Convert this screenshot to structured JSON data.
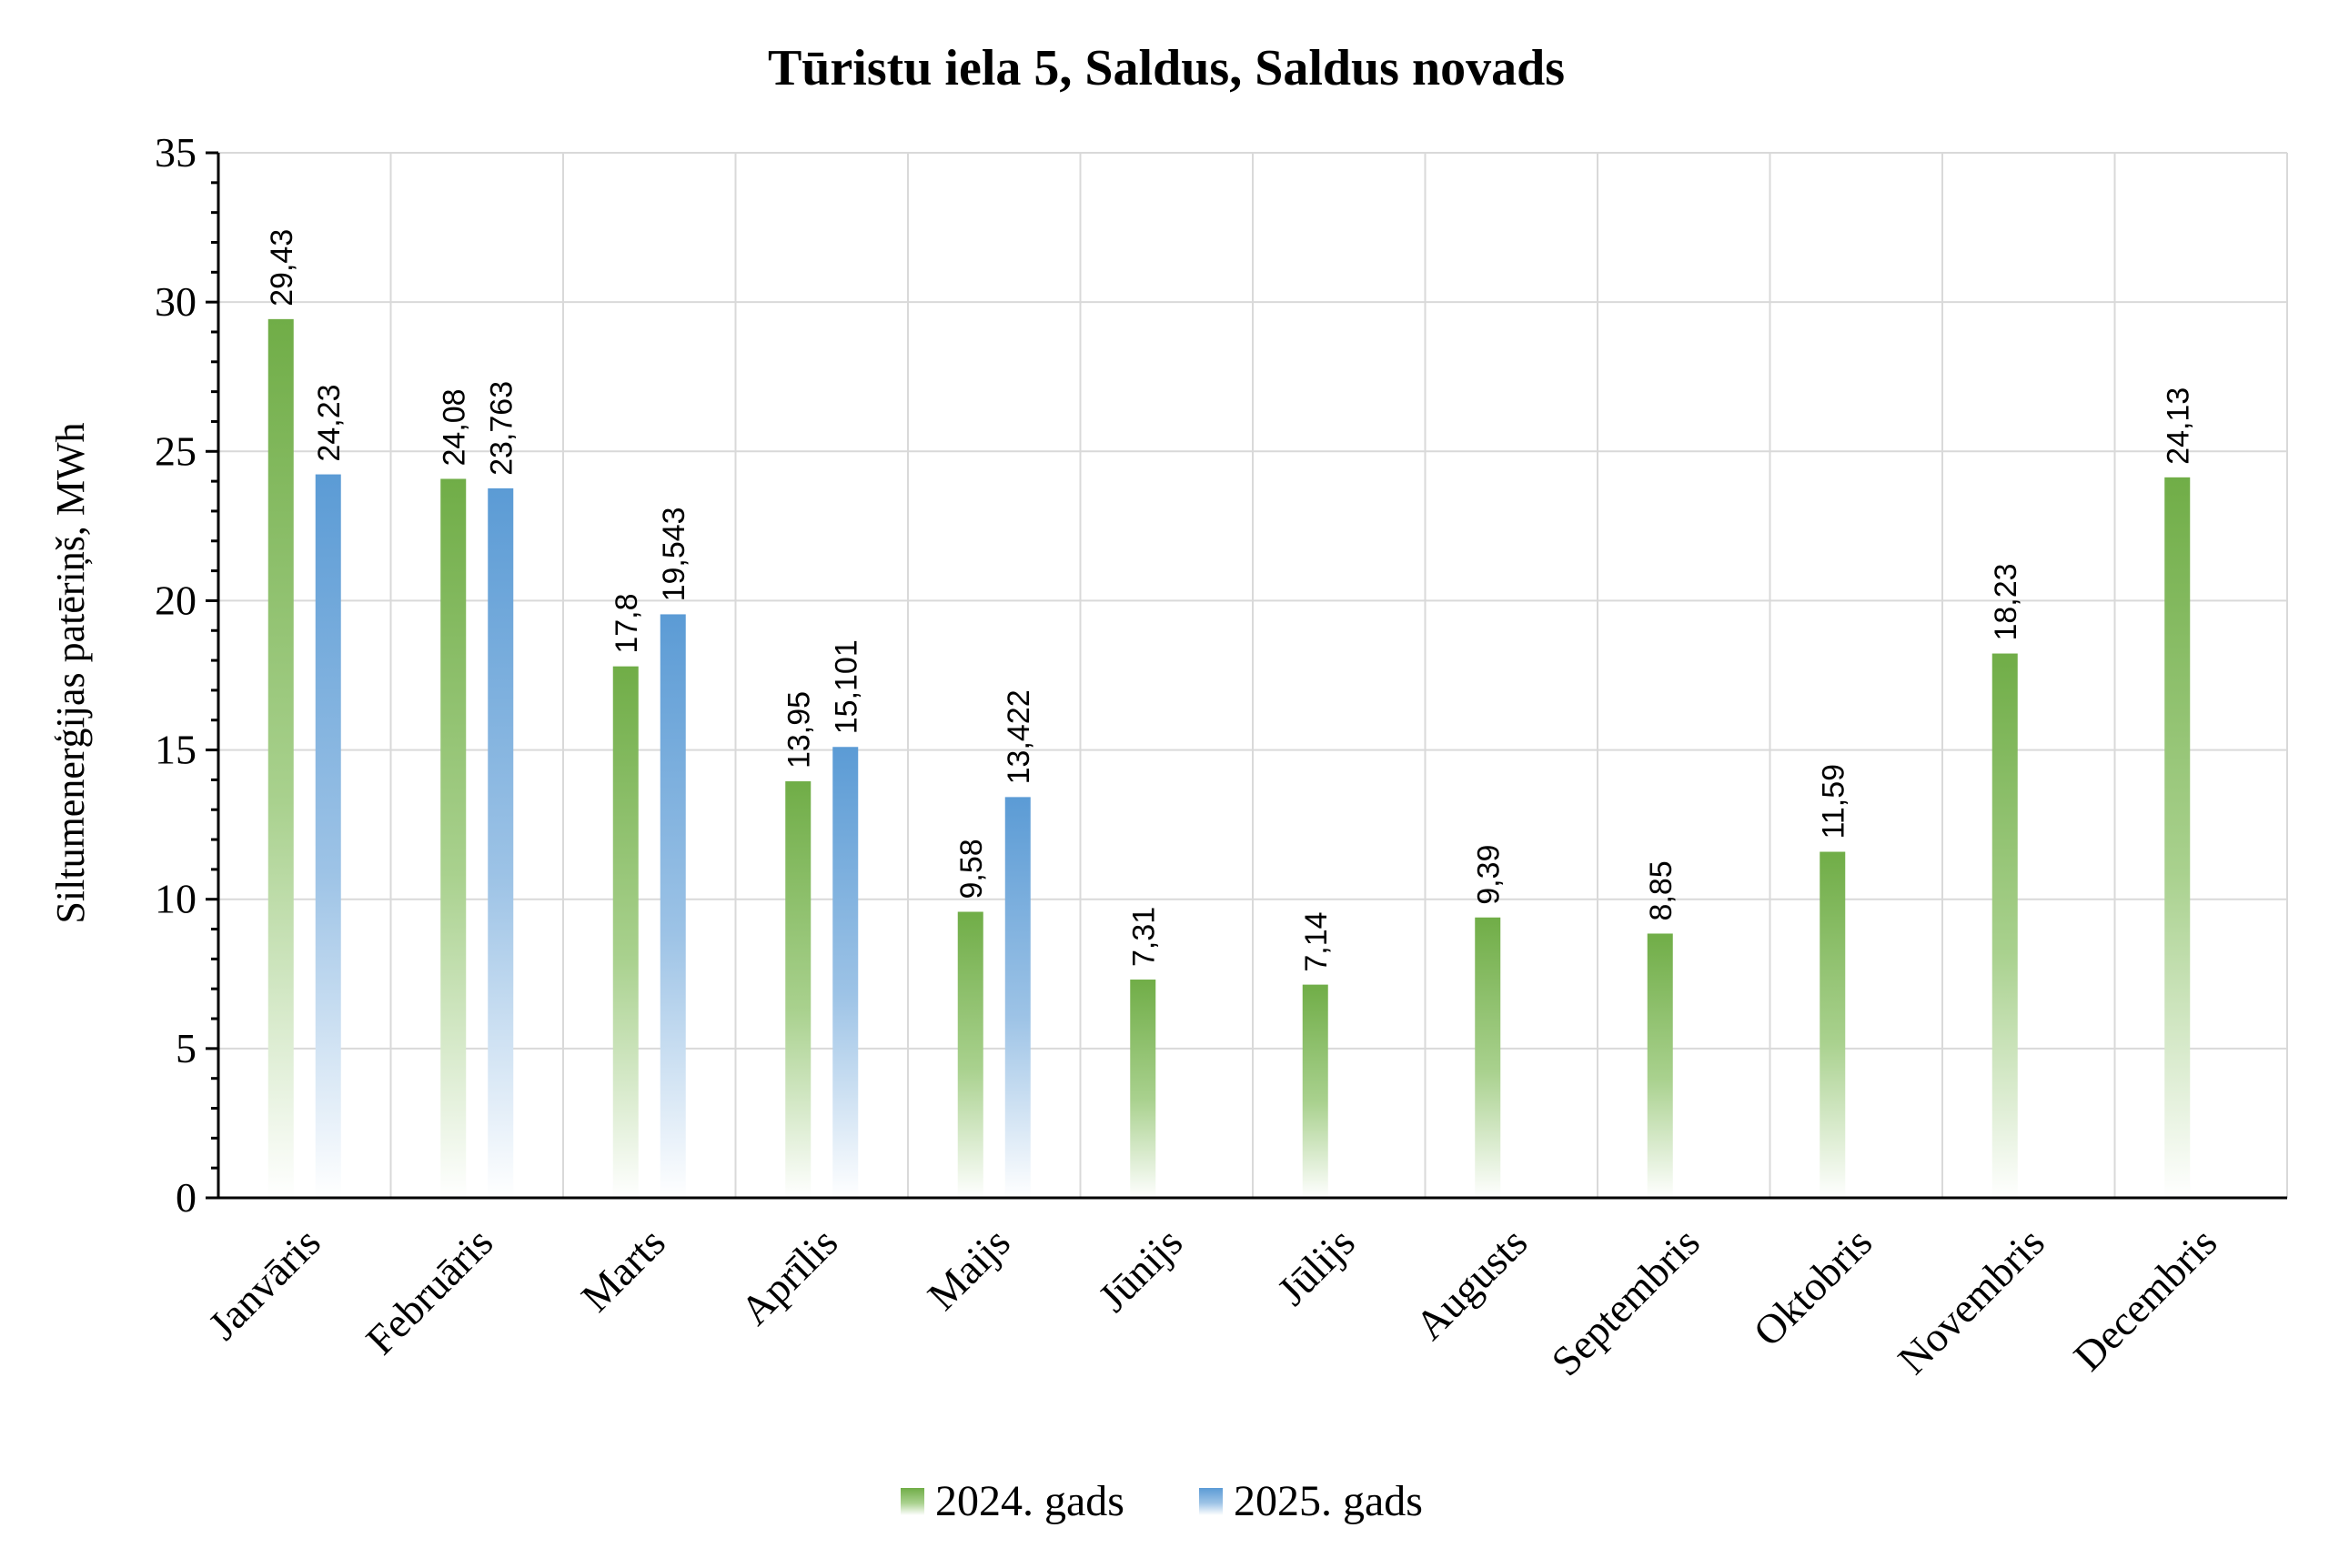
{
  "chart_data": {
    "type": "bar",
    "title": "Tūristu iela 5, Saldus, Saldus novads",
    "ylabel": "Siltumenerģijas patēriņš, MWh",
    "xlabel": "",
    "ylim": [
      0,
      35
    ],
    "yticks": [
      "0",
      "5",
      "10",
      "15",
      "20",
      "25",
      "30",
      "35"
    ],
    "ytick_values": [
      0,
      5,
      10,
      15,
      20,
      25,
      30,
      35
    ],
    "grid": true,
    "legend_position": "bottom",
    "categories": [
      "Janvāris",
      "Februāris",
      "Marts",
      "Aprīlis",
      "Maijs",
      "Jūnijs",
      "Jūlijs",
      "Augusts",
      "Septembris",
      "Oktobris",
      "Novembris",
      "Decembris"
    ],
    "series": [
      {
        "name": "2024. gads",
        "color": "#70ad47",
        "values": [
          29.43,
          24.08,
          17.8,
          13.95,
          9.58,
          7.31,
          7.14,
          9.39,
          8.85,
          11.59,
          18.23,
          24.13
        ],
        "labels": [
          "29,43",
          "24,08",
          "17,8",
          "13,95",
          "9,58",
          "7,31",
          "7,14",
          "9,39",
          "8,85",
          "11,59",
          "18,23",
          "24,13"
        ]
      },
      {
        "name": "2025. gads",
        "color": "#5b9bd5",
        "values": [
          24.23,
          23.763,
          19.543,
          15.101,
          13.422,
          null,
          null,
          null,
          null,
          null,
          null,
          null
        ],
        "labels": [
          "24,23",
          "23,763",
          "19,543",
          "15,101",
          "13,422",
          "",
          "",
          "",
          "",
          "",
          "",
          ""
        ]
      }
    ]
  }
}
